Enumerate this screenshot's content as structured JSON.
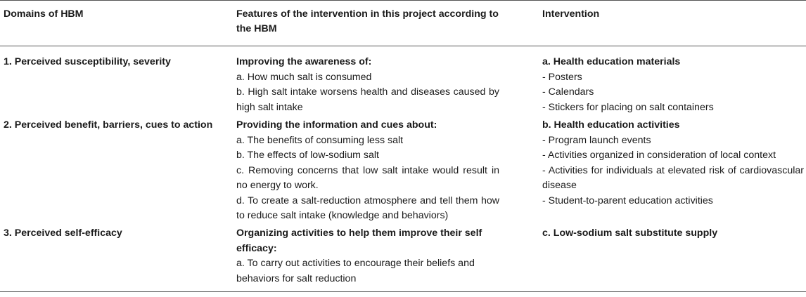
{
  "headers": {
    "col1": "Domains of HBM",
    "col2": "Features of the intervention in this project according to the HBM",
    "col3": "Intervention"
  },
  "rows": [
    {
      "domain": "1. Perceived susceptibility, severity",
      "features_title": "Improving the awareness of:",
      "features": [
        "a. How much salt is consumed",
        "b. High salt intake worsens health and diseases caused by high salt intake"
      ],
      "intervention_title": "a. Health education materials",
      "interventions": [
        "- Posters",
        "- Calendars",
        "- Stickers for placing on salt containers"
      ]
    },
    {
      "domain": "2. Perceived benefit, barriers, cues to action",
      "features_title": "Providing the information and cues about:",
      "features": [
        "a. The benefits of consuming less salt",
        "b. The effects of low-sodium salt",
        "c. Removing concerns that low salt intake would result in no energy to work.",
        "d. To create a salt-reduction atmosphere and tell them how to reduce salt intake (knowledge and behaviors)"
      ],
      "intervention_title": "b. Health education activities",
      "interventions": [
        "- Program launch events",
        "- Activities organized in consideration of local context",
        "- Activities for individuals at elevated risk of cardiovascular disease",
        "- Student-to-parent education activities"
      ]
    },
    {
      "domain": "3. Perceived self-efficacy",
      "features_title": "Organizing activities to help them improve their self efficacy:",
      "features": [
        "a. To carry out activities to encourage their beliefs and behaviors for salt reduction"
      ],
      "intervention_title": "c. Low-sodium salt substitute supply",
      "interventions": []
    }
  ]
}
